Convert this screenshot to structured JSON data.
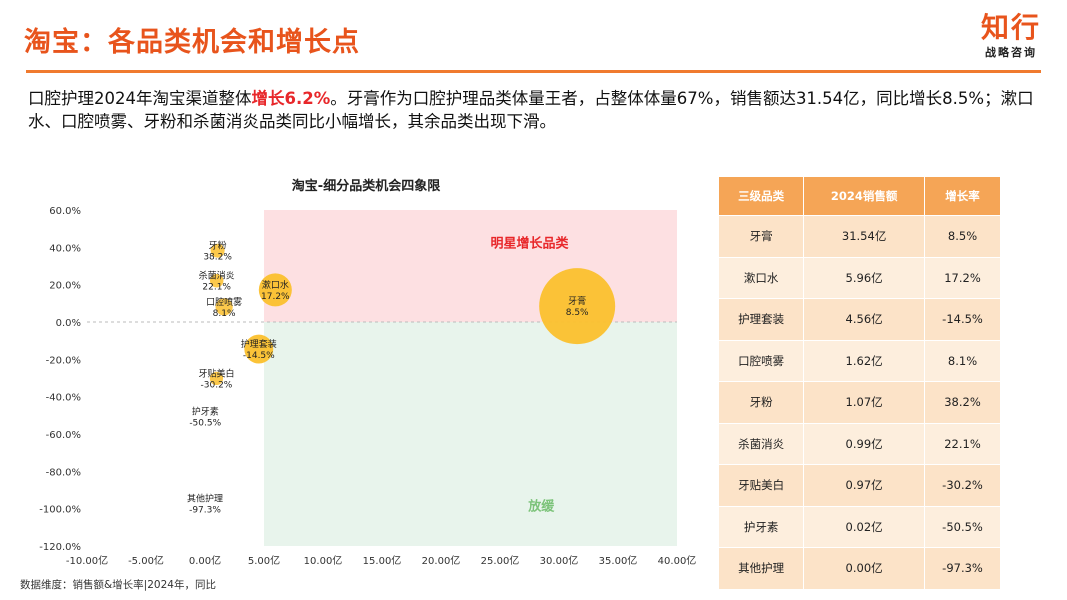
{
  "header": {
    "title": "淘宝：各品类机会和增长点",
    "logo_main": "知行",
    "logo_sub": "战略咨询"
  },
  "summary": {
    "part1": "口腔护理2024年淘宝渠道整体",
    "highlight": "增长6.2%",
    "part2": "。牙膏作为口腔护理品类体量王者，占整体体量67%，销售额达31.54亿，同比增长8.5%；漱口水、口腔喷雾、牙粉和杀菌消炎品类同比小幅增长，其余品类出现下滑。"
  },
  "chart_data": {
    "type": "scatter",
    "title": "淘宝-细分品类机会四象限",
    "x_ticks": [
      "-10.00亿",
      "-5.00亿",
      "0.00亿",
      "5.00亿",
      "10.00亿",
      "15.00亿",
      "20.00亿",
      "25.00亿",
      "30.00亿",
      "35.00亿",
      "40.00亿"
    ],
    "y_ticks": [
      "60.0%",
      "40.0%",
      "20.0%",
      "0.0%",
      "-20.0%",
      "-40.0%",
      "-60.0%",
      "-80.0%",
      "-100.0%",
      "-120.0%"
    ],
    "xlim": [
      -10,
      40
    ],
    "ylim": [
      -120,
      60
    ],
    "quadrant_labels": {
      "top_right": "明星增长品类",
      "bottom_right": "放缓"
    },
    "colors": {
      "bubble": "#FBC02D",
      "top_quadrant": "#FDE0E2",
      "bottom_quadrant": "#E8F4EC",
      "top_label": "#E8272A",
      "bottom_label": "#7CC37A"
    },
    "points": [
      {
        "name": "牙膏",
        "label": "8.5%",
        "x": 31.54,
        "y": 8.5
      },
      {
        "name": "漱口水",
        "label": "17.2%",
        "x": 5.96,
        "y": 17.2
      },
      {
        "name": "护理套装",
        "label": "-14.5%",
        "x": 4.56,
        "y": -14.5
      },
      {
        "name": "口腔喷雾",
        "label": "8.1%",
        "x": 1.62,
        "y": 8.1
      },
      {
        "name": "牙粉",
        "label": "38.2%",
        "x": 1.07,
        "y": 38.2
      },
      {
        "name": "杀菌消炎",
        "label": "22.1%",
        "x": 0.99,
        "y": 22.1
      },
      {
        "name": "牙贴美白",
        "label": "-30.2%",
        "x": 0.97,
        "y": -30.2
      },
      {
        "name": "护牙素",
        "label": "-50.5%",
        "x": 0.02,
        "y": -50.5
      },
      {
        "name": "其他护理",
        "label": "-97.3%",
        "x": 0.0,
        "y": -97.3
      }
    ]
  },
  "table": {
    "headers": [
      "三级品类",
      "2024销售额",
      "增长率"
    ],
    "rows": [
      [
        "牙膏",
        "31.54亿",
        "8.5%"
      ],
      [
        "漱口水",
        "5.96亿",
        "17.2%"
      ],
      [
        "护理套装",
        "4.56亿",
        "-14.5%"
      ],
      [
        "口腔喷雾",
        "1.62亿",
        "8.1%"
      ],
      [
        "牙粉",
        "1.07亿",
        "38.2%"
      ],
      [
        "杀菌消炎",
        "0.99亿",
        "22.1%"
      ],
      [
        "牙贴美白",
        "0.97亿",
        "-30.2%"
      ],
      [
        "护牙素",
        "0.02亿",
        "-50.5%"
      ],
      [
        "其他护理",
        "0.00亿",
        "-97.3%"
      ]
    ]
  },
  "footnote": "数据维度：销售额&增长率|2024年，同比"
}
